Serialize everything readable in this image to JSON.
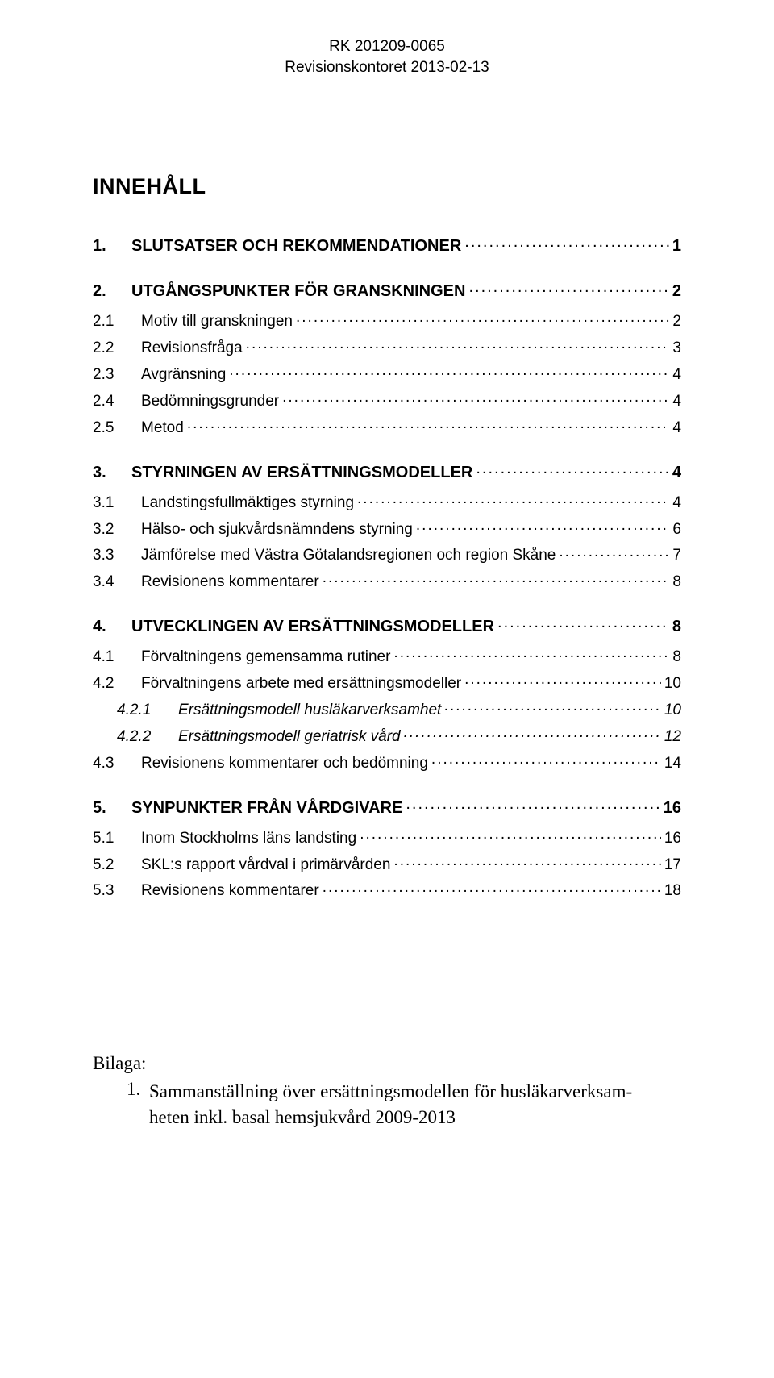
{
  "header": {
    "line1": "RK 201209-0065",
    "line2": "Revisionskontoret 2013-02-13"
  },
  "title": "INNEHÅLL",
  "toc": [
    {
      "level": 1,
      "num": "1.",
      "label": "SLUTSATSER OCH REKOMMENDATIONER",
      "page": "1"
    },
    {
      "level": 1,
      "num": "2.",
      "label": "UTGÅNGSPUNKTER FÖR GRANSKNINGEN",
      "page": "2"
    },
    {
      "level": 2,
      "num": "2.1",
      "label": "Motiv till granskningen",
      "page": "2"
    },
    {
      "level": 2,
      "num": "2.2",
      "label": "Revisionsfråga",
      "page": "3"
    },
    {
      "level": 2,
      "num": "2.3",
      "label": "Avgränsning",
      "page": "4"
    },
    {
      "level": 2,
      "num": "2.4",
      "label": "Bedömningsgrunder",
      "page": "4"
    },
    {
      "level": 2,
      "num": "2.5",
      "label": "Metod",
      "page": "4"
    },
    {
      "level": 1,
      "num": "3.",
      "label": "STYRNINGEN AV ERSÄTTNINGSMODELLER",
      "page": "4"
    },
    {
      "level": 2,
      "num": "3.1",
      "label": "Landstingsfullmäktiges styrning",
      "page": "4"
    },
    {
      "level": 2,
      "num": "3.2",
      "label": "Hälso- och sjukvårdsnämndens styrning",
      "page": "6"
    },
    {
      "level": 2,
      "num": "3.3",
      "label": "Jämförelse med Västra Götalandsregionen och region Skåne",
      "page": "7"
    },
    {
      "level": 2,
      "num": "3.4",
      "label": "Revisionens kommentarer",
      "page": "8"
    },
    {
      "level": 1,
      "num": "4.",
      "label": "UTVECKLINGEN AV ERSÄTTNINGSMODELLER",
      "page": "8"
    },
    {
      "level": 2,
      "num": "4.1",
      "label": "Förvaltningens gemensamma rutiner",
      "page": "8"
    },
    {
      "level": 2,
      "num": "4.2",
      "label": "Förvaltningens arbete med ersättningsmodeller",
      "page": "10"
    },
    {
      "level": 3,
      "num": "4.2.1",
      "label": "Ersättningsmodell husläkarverksamhet",
      "page": "10"
    },
    {
      "level": 3,
      "num": "4.2.2",
      "label": "Ersättningsmodell geriatrisk vård",
      "page": "12"
    },
    {
      "level": 2,
      "num": "4.3",
      "label": "Revisionens kommentarer och bedömning",
      "page": "14"
    },
    {
      "level": 1,
      "num": "5.",
      "label": "SYNPUNKTER FRÅN VÅRDGIVARE",
      "page": "16"
    },
    {
      "level": 2,
      "num": "5.1",
      "label": "Inom Stockholms läns landsting",
      "page": "16"
    },
    {
      "level": 2,
      "num": "5.2",
      "label": "SKL:s rapport vårdval i primärvården",
      "page": "17"
    },
    {
      "level": 2,
      "num": "5.3",
      "label": "Revisionens kommentarer",
      "page": "18"
    }
  ],
  "bilaga": {
    "title": "Bilaga:",
    "item_num": "1.",
    "item_text_line1": "Sammanställning över ersättningsmodellen för husläkarverksam-",
    "item_text_line2": "heten inkl. basal hemsjukvård 2009-2013"
  }
}
